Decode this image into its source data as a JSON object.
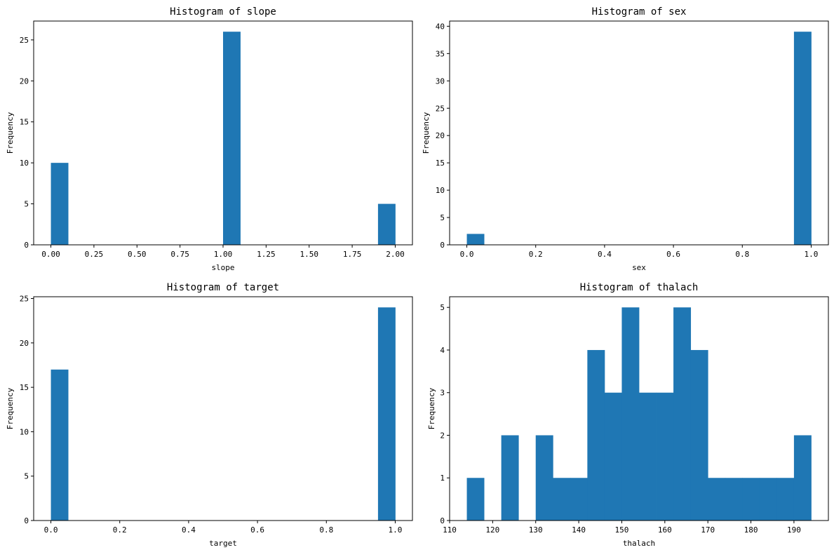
{
  "chart_data": [
    {
      "type": "bar",
      "title": "Histogram of slope",
      "xlabel": "slope",
      "ylabel": "Frequency",
      "xlim": [
        -0.1,
        2.1
      ],
      "ylim": [
        0,
        27.3
      ],
      "xticks": [
        0.0,
        0.25,
        0.5,
        0.75,
        1.0,
        1.25,
        1.5,
        1.75,
        2.0
      ],
      "xtick_labels": [
        "0.00",
        "0.25",
        "0.50",
        "0.75",
        "1.00",
        "1.25",
        "1.50",
        "1.75",
        "2.00"
      ],
      "yticks": [
        0,
        5,
        10,
        15,
        20,
        25
      ],
      "ytick_labels": [
        "0",
        "5",
        "10",
        "15",
        "20",
        "25"
      ],
      "bins": [
        {
          "x0": 0.0,
          "x1": 0.1,
          "count": 10
        },
        {
          "x0": 1.0,
          "x1": 1.1,
          "count": 26
        },
        {
          "x0": 1.9,
          "x1": 2.0,
          "count": 5
        }
      ]
    },
    {
      "type": "bar",
      "title": "Histogram of sex",
      "xlabel": "sex",
      "ylabel": "Frequency",
      "xlim": [
        -0.05,
        1.05
      ],
      "ylim": [
        0,
        40.95
      ],
      "xticks": [
        0.0,
        0.2,
        0.4,
        0.6,
        0.8,
        1.0
      ],
      "xtick_labels": [
        "0.0",
        "0.2",
        "0.4",
        "0.6",
        "0.8",
        "1.0"
      ],
      "yticks": [
        0,
        5,
        10,
        15,
        20,
        25,
        30,
        35,
        40
      ],
      "ytick_labels": [
        "0",
        "5",
        "10",
        "15",
        "20",
        "25",
        "30",
        "35",
        "40"
      ],
      "bins": [
        {
          "x0": 0.0,
          "x1": 0.05,
          "count": 2
        },
        {
          "x0": 0.95,
          "x1": 1.0,
          "count": 39
        }
      ]
    },
    {
      "type": "bar",
      "title": "Histogram of target",
      "xlabel": "target",
      "ylabel": "Frequency",
      "xlim": [
        -0.05,
        1.05
      ],
      "ylim": [
        0,
        25.2
      ],
      "xticks": [
        0.0,
        0.2,
        0.4,
        0.6,
        0.8,
        1.0
      ],
      "xtick_labels": [
        "0.0",
        "0.2",
        "0.4",
        "0.6",
        "0.8",
        "1.0"
      ],
      "yticks": [
        0,
        5,
        10,
        15,
        20,
        25
      ],
      "ytick_labels": [
        "0",
        "5",
        "10",
        "15",
        "20",
        "25"
      ],
      "bins": [
        {
          "x0": 0.0,
          "x1": 0.05,
          "count": 17
        },
        {
          "x0": 0.95,
          "x1": 1.0,
          "count": 24
        }
      ]
    },
    {
      "type": "bar",
      "title": "Histogram of thalach",
      "xlabel": "thalach",
      "ylabel": "Frequency",
      "xlim": [
        110,
        198
      ],
      "ylim": [
        0,
        5.25
      ],
      "xticks": [
        110,
        120,
        130,
        140,
        150,
        160,
        170,
        180,
        190
      ],
      "xtick_labels": [
        "110",
        "120",
        "130",
        "140",
        "150",
        "160",
        "170",
        "180",
        "190"
      ],
      "yticks": [
        0,
        1,
        2,
        3,
        4,
        5
      ],
      "ytick_labels": [
        "0",
        "1",
        "2",
        "3",
        "4",
        "5"
      ],
      "bins": [
        {
          "x0": 114,
          "x1": 118,
          "count": 1
        },
        {
          "x0": 118,
          "x1": 122,
          "count": 0
        },
        {
          "x0": 122,
          "x1": 126,
          "count": 2
        },
        {
          "x0": 126,
          "x1": 130,
          "count": 0
        },
        {
          "x0": 130,
          "x1": 134,
          "count": 2
        },
        {
          "x0": 134,
          "x1": 138,
          "count": 1
        },
        {
          "x0": 138,
          "x1": 142,
          "count": 1
        },
        {
          "x0": 142,
          "x1": 146,
          "count": 4
        },
        {
          "x0": 146,
          "x1": 150,
          "count": 3
        },
        {
          "x0": 150,
          "x1": 154,
          "count": 5
        },
        {
          "x0": 154,
          "x1": 158,
          "count": 3
        },
        {
          "x0": 158,
          "x1": 162,
          "count": 3
        },
        {
          "x0": 162,
          "x1": 166,
          "count": 5
        },
        {
          "x0": 166,
          "x1": 170,
          "count": 4
        },
        {
          "x0": 170,
          "x1": 174,
          "count": 1
        },
        {
          "x0": 174,
          "x1": 178,
          "count": 1
        },
        {
          "x0": 178,
          "x1": 182,
          "count": 1
        },
        {
          "x0": 182,
          "x1": 186,
          "count": 1
        },
        {
          "x0": 186,
          "x1": 190,
          "count": 1
        },
        {
          "x0": 190,
          "x1": 194,
          "count": 2
        }
      ]
    }
  ]
}
